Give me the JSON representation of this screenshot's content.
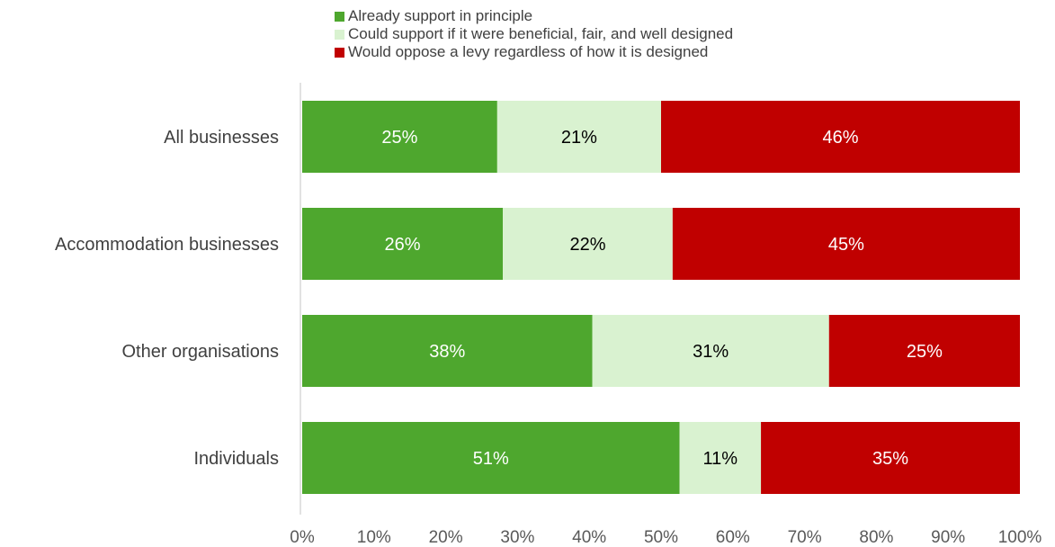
{
  "chart_data": {
    "type": "bar",
    "orientation": "horizontal",
    "stacked": true,
    "normalized_to_percent": true,
    "categories": [
      "All businesses",
      "Accommodation businesses",
      "Other organisations",
      "Individuals"
    ],
    "series": [
      {
        "name": "Already support in principle",
        "color": "#4ea72e",
        "values": [
          25,
          26,
          38,
          51
        ],
        "labels": [
          "25%",
          "26%",
          "38%",
          "51%"
        ],
        "label_color": "#ffffff"
      },
      {
        "name": "Could support if it were beneficial, fair, and well designed",
        "color": "#d9f2d0",
        "values": [
          21,
          22,
          31,
          11
        ],
        "labels": [
          "21%",
          "22%",
          "31%",
          "11%"
        ],
        "label_color": "#000000"
      },
      {
        "name": "Would oppose a levy regardless of how it is designed",
        "color": "#c00000",
        "values": [
          46,
          45,
          25,
          35
        ],
        "labels": [
          "46%",
          "45%",
          "25%",
          "35%"
        ],
        "label_color": "#ffffff"
      }
    ],
    "xlim": [
      0,
      100
    ],
    "x_ticks": [
      "0%",
      "10%",
      "20%",
      "30%",
      "40%",
      "50%",
      "60%",
      "70%",
      "80%",
      "90%",
      "100%"
    ],
    "grid": false,
    "legend_position": "top"
  }
}
